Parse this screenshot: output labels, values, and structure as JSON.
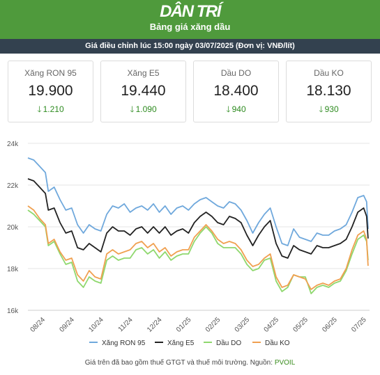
{
  "header": {
    "brand": "DÂN TRÍ",
    "title": "Bảng giá xăng dầu"
  },
  "subheader": "Giá điều chỉnh lúc 15:00 ngày 03/07/2025 (Đơn vị: VNĐ/lít)",
  "cards": [
    {
      "name": "Xăng RON 95",
      "price": "19.900",
      "change": "1.210",
      "direction": "down",
      "icon": "arrow-down-icon"
    },
    {
      "name": "Xăng E5",
      "price": "19.440",
      "change": "1.090",
      "direction": "down",
      "icon": "arrow-down-icon"
    },
    {
      "name": "Dầu DO",
      "price": "18.400",
      "change": "940",
      "direction": "down",
      "icon": "arrow-down-icon"
    },
    {
      "name": "Dầu KO",
      "price": "18.130",
      "change": "930",
      "direction": "down",
      "icon": "arrow-down-icon"
    }
  ],
  "colors": {
    "header_bg": "#4f9a3c",
    "subbar_bg": "#33414f",
    "change_down": "#2e8b20"
  },
  "footnote": {
    "text": "Giá trên đã bao gồm thuế GTGT và thuế môi trường. Nguồn:",
    "source": "PVOIL"
  },
  "chart_data": {
    "type": "line",
    "title": "",
    "xlabel": "",
    "ylabel": "",
    "ylim": [
      16000,
      24000
    ],
    "y_ticks": [
      16000,
      18000,
      20000,
      22000,
      24000
    ],
    "y_tick_labels": [
      "16k",
      "18k",
      "20k",
      "22k",
      "24k"
    ],
    "x_tick_labels": [
      "08/24",
      "09/24",
      "10/24",
      "11/24",
      "12/24",
      "01/25",
      "02/25",
      "03/25",
      "04/25",
      "05/25",
      "06/25",
      "07/25"
    ],
    "x_tick_positions": [
      1,
      2,
      3,
      4,
      5,
      6,
      7,
      8,
      9,
      10,
      11,
      12
    ],
    "xlim": [
      0.5,
      12.2
    ],
    "grid": "horizontal",
    "legend": "bottom",
    "x": [
      0.5,
      0.7,
      0.9,
      1.1,
      1.2,
      1.4,
      1.6,
      1.8,
      2.0,
      2.2,
      2.4,
      2.6,
      2.8,
      3.0,
      3.2,
      3.4,
      3.6,
      3.8,
      4.0,
      4.2,
      4.4,
      4.6,
      4.8,
      5.0,
      5.2,
      5.4,
      5.6,
      5.8,
      6.0,
      6.2,
      6.4,
      6.6,
      6.8,
      7.0,
      7.2,
      7.4,
      7.6,
      7.8,
      8.0,
      8.2,
      8.4,
      8.6,
      8.8,
      9.0,
      9.2,
      9.4,
      9.6,
      9.8,
      10.0,
      10.2,
      10.4,
      10.6,
      10.8,
      11.0,
      11.2,
      11.4,
      11.6,
      11.8,
      12.0,
      12.1,
      12.15
    ],
    "series": [
      {
        "name": "Xăng RON 95",
        "color": "#6fa8dc",
        "values": [
          23300,
          23200,
          22900,
          22600,
          21700,
          21900,
          21300,
          20800,
          20900,
          20100,
          19700,
          20100,
          19900,
          19800,
          20600,
          21000,
          20900,
          21100,
          20700,
          20900,
          21000,
          20800,
          21100,
          20700,
          21000,
          20600,
          20900,
          21000,
          20800,
          21100,
          21300,
          21400,
          21200,
          21000,
          20900,
          21200,
          21100,
          20800,
          20300,
          19700,
          20200,
          20600,
          20900,
          20000,
          19200,
          19100,
          19900,
          19500,
          19400,
          19300,
          19700,
          19600,
          19600,
          19800,
          19900,
          20100,
          20700,
          21400,
          21500,
          21200,
          19900
        ]
      },
      {
        "name": "Xăng E5",
        "color": "#222222",
        "values": [
          22300,
          22200,
          21900,
          21600,
          20800,
          20900,
          20200,
          19700,
          19800,
          19000,
          18900,
          19200,
          19000,
          18800,
          19700,
          20000,
          19800,
          19800,
          19600,
          19900,
          20000,
          19700,
          20000,
          19700,
          20000,
          19600,
          19800,
          19900,
          19700,
          20200,
          20500,
          20700,
          20500,
          20200,
          20100,
          20500,
          20400,
          20200,
          19600,
          19100,
          19600,
          20000,
          20300,
          19200,
          18600,
          18500,
          19100,
          18900,
          18800,
          18700,
          19100,
          19000,
          19000,
          19100,
          19200,
          19400,
          20000,
          20700,
          20900,
          20500,
          19440
        ]
      },
      {
        "name": "Dầu DO",
        "color": "#8fd86e",
        "values": [
          20800,
          20600,
          20300,
          20000,
          19100,
          19300,
          18700,
          18200,
          18300,
          17400,
          17100,
          17600,
          17400,
          17300,
          18400,
          18600,
          18400,
          18500,
          18500,
          18900,
          19000,
          18700,
          18900,
          18500,
          18800,
          18400,
          18600,
          18700,
          18700,
          19300,
          19700,
          20000,
          19700,
          19200,
          19000,
          19000,
          19000,
          18700,
          18200,
          17900,
          18000,
          18400,
          18500,
          17400,
          16900,
          17100,
          17700,
          17600,
          17600,
          16800,
          17100,
          17200,
          17100,
          17300,
          17400,
          17900,
          18700,
          19400,
          19600,
          19300,
          18400
        ]
      },
      {
        "name": "Dầu KO",
        "color": "#f0a050",
        "values": [
          21000,
          20800,
          20400,
          20100,
          19200,
          19400,
          18800,
          18400,
          18500,
          17700,
          17400,
          17900,
          17600,
          17500,
          18700,
          18900,
          18700,
          18800,
          18900,
          19200,
          19300,
          19000,
          19200,
          18800,
          19000,
          18600,
          18800,
          18900,
          18900,
          19500,
          19800,
          20100,
          19800,
          19400,
          19200,
          19300,
          19200,
          18900,
          18400,
          18100,
          18200,
          18500,
          18700,
          17600,
          17100,
          17200,
          17700,
          17600,
          17500,
          17000,
          17200,
          17300,
          17200,
          17400,
          17500,
          18000,
          18900,
          19600,
          19800,
          19400,
          18130
        ]
      }
    ]
  }
}
